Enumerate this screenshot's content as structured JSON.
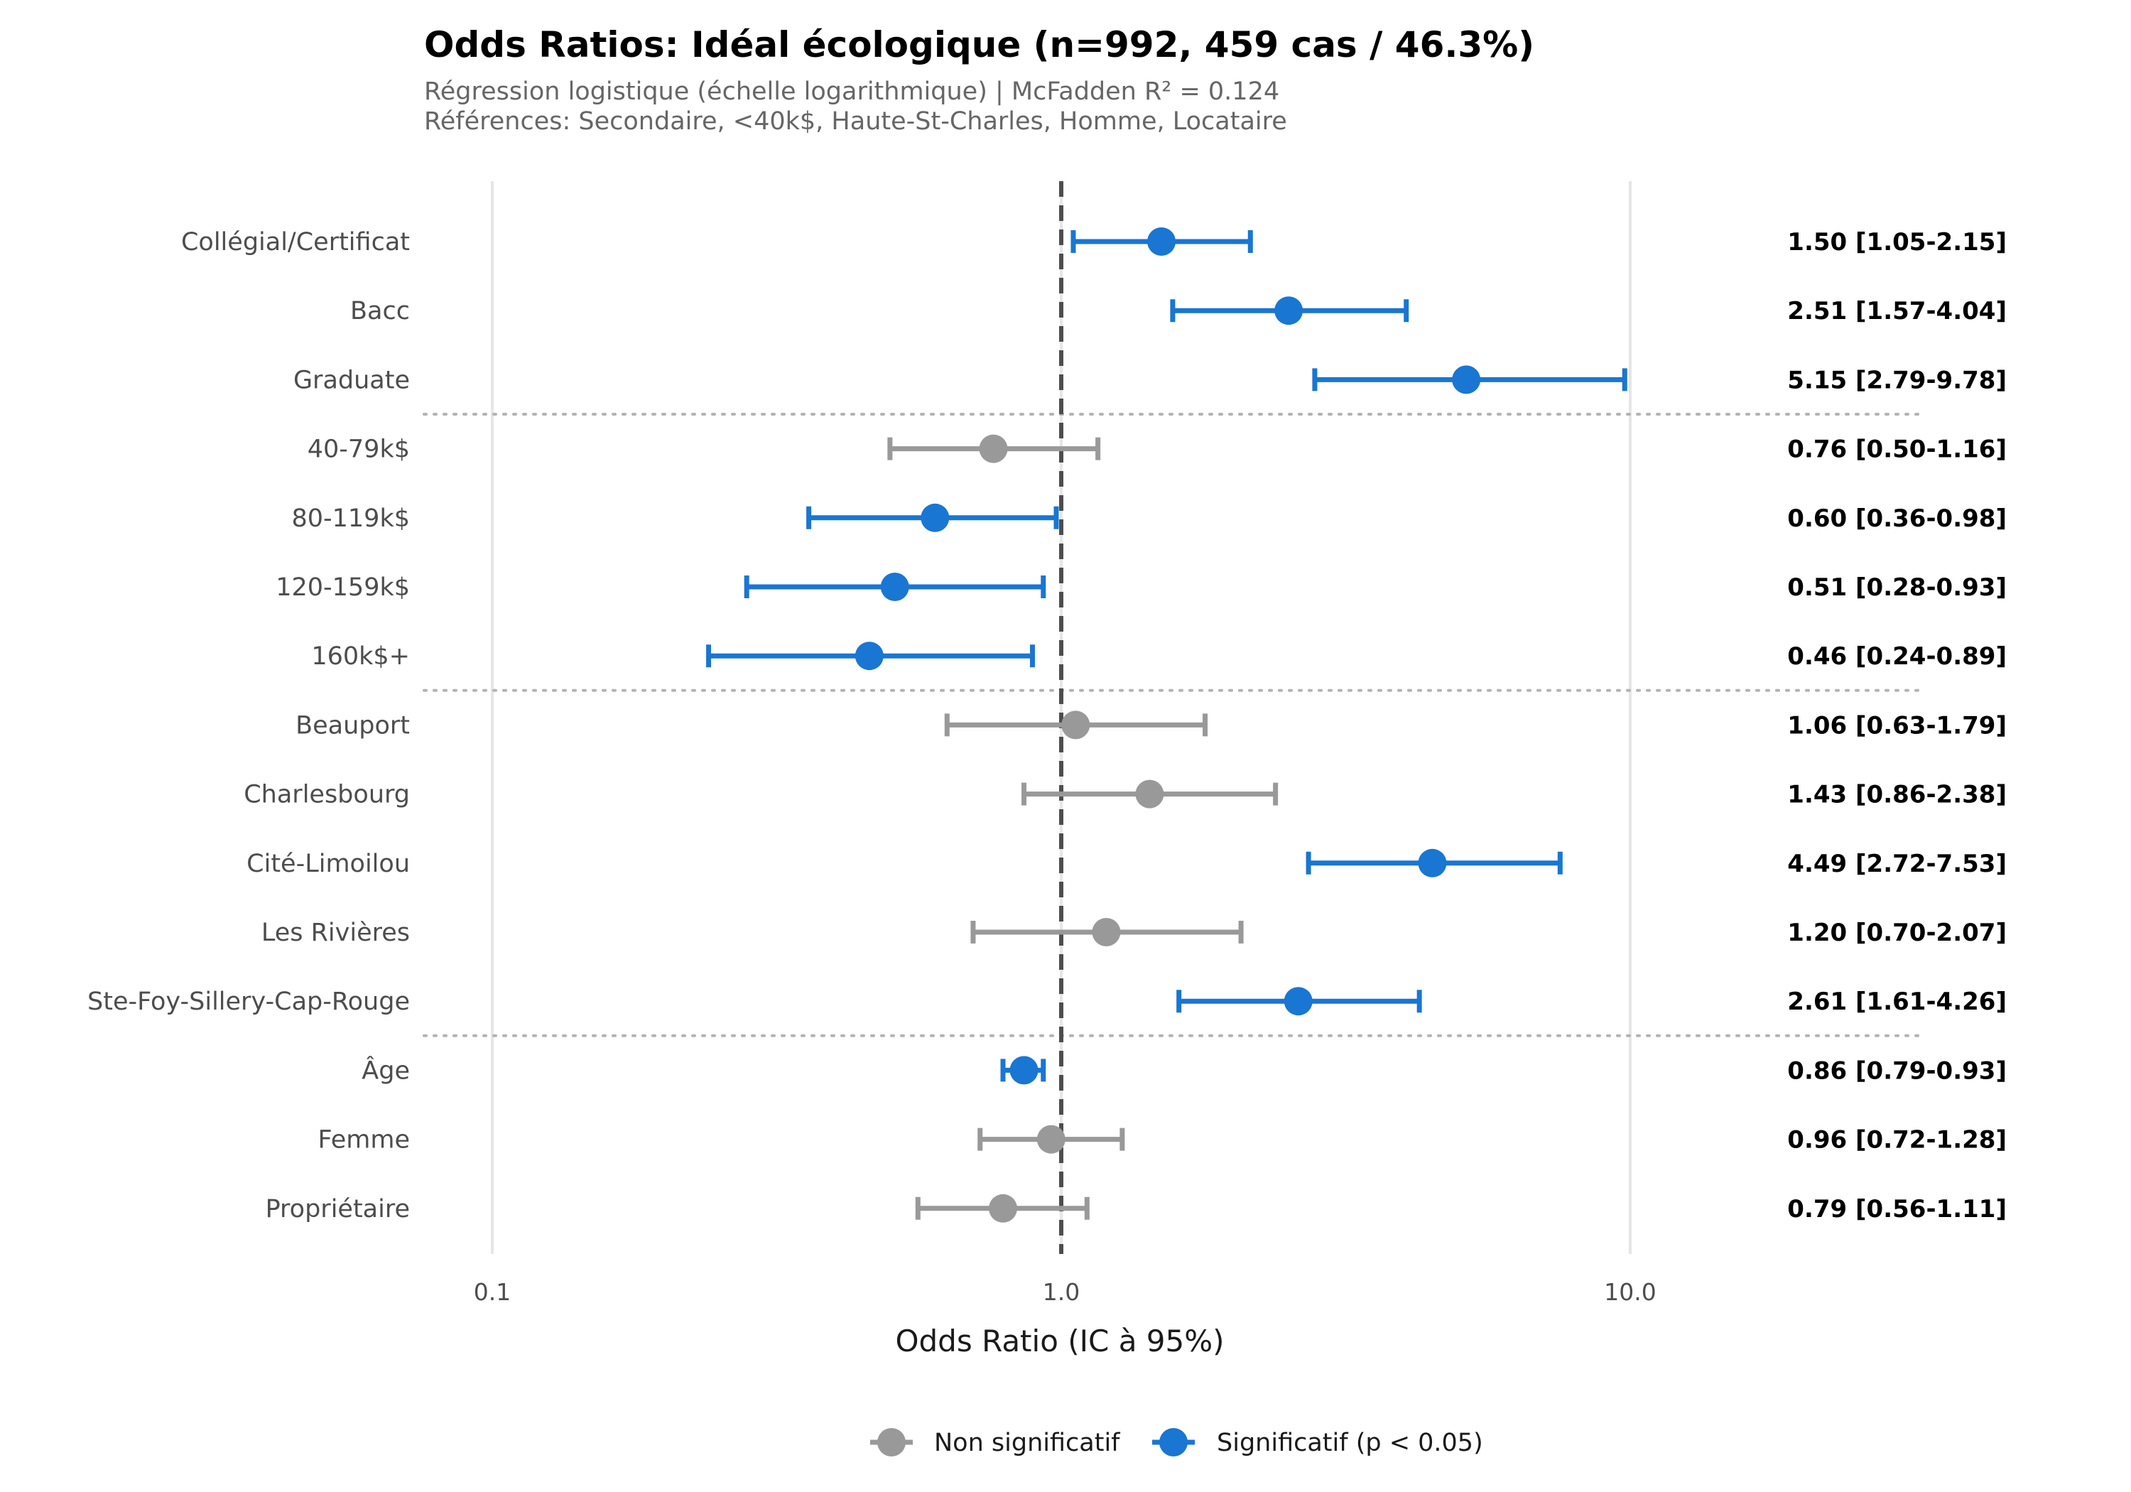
{
  "chart_data": {
    "type": "scatter",
    "subtype": "forest-plot",
    "title": "Odds Ratios: Idéal écologique (n=992, 459 cas / 46.3%)",
    "subtitle": [
      "Régression logistique (échelle logarithmique) | McFadden R² = 0.124",
      "Références: Secondaire, <40k$, Haute-St-Charles, Homme, Locataire"
    ],
    "xlabel": "Odds Ratio (IC à 95%)",
    "x_scale": "log",
    "xlim": [
      0.07,
      35
    ],
    "x_ticks": [
      {
        "value": 0.1,
        "label": "0.1"
      },
      {
        "value": 1.0,
        "label": "1.0"
      },
      {
        "value": 10.0,
        "label": "10.0"
      }
    ],
    "reference_line": 1.0,
    "grid": "vertical",
    "legend_position": "bottom",
    "groups": [
      {
        "name": "education",
        "rows": [
          0,
          1,
          2
        ]
      },
      {
        "name": "income",
        "rows": [
          3,
          4,
          5,
          6
        ]
      },
      {
        "name": "district",
        "rows": [
          7,
          8,
          9,
          10,
          11
        ]
      },
      {
        "name": "other",
        "rows": [
          12,
          13,
          14
        ]
      }
    ],
    "rows": [
      {
        "label": "Collégial/Certificat",
        "or": 1.5,
        "lo": 1.05,
        "hi": 2.15,
        "significant": true,
        "annotation": "1.50 [1.05-2.15]"
      },
      {
        "label": "Bacc",
        "or": 2.51,
        "lo": 1.57,
        "hi": 4.04,
        "significant": true,
        "annotation": "2.51 [1.57-4.04]"
      },
      {
        "label": "Graduate",
        "or": 5.15,
        "lo": 2.79,
        "hi": 9.78,
        "significant": true,
        "annotation": "5.15 [2.79-9.78]"
      },
      {
        "label": "40-79k$",
        "or": 0.76,
        "lo": 0.5,
        "hi": 1.16,
        "significant": false,
        "annotation": "0.76 [0.50-1.16]"
      },
      {
        "label": "80-119k$",
        "or": 0.6,
        "lo": 0.36,
        "hi": 0.98,
        "significant": true,
        "annotation": "0.60 [0.36-0.98]"
      },
      {
        "label": "120-159k$",
        "or": 0.51,
        "lo": 0.28,
        "hi": 0.93,
        "significant": true,
        "annotation": "0.51 [0.28-0.93]"
      },
      {
        "label": "160k$+",
        "or": 0.46,
        "lo": 0.24,
        "hi": 0.89,
        "significant": true,
        "annotation": "0.46 [0.24-0.89]"
      },
      {
        "label": "Beauport",
        "or": 1.06,
        "lo": 0.63,
        "hi": 1.79,
        "significant": false,
        "annotation": "1.06 [0.63-1.79]"
      },
      {
        "label": "Charlesbourg",
        "or": 1.43,
        "lo": 0.86,
        "hi": 2.38,
        "significant": false,
        "annotation": "1.43 [0.86-2.38]"
      },
      {
        "label": "Cité-Limoilou",
        "or": 4.49,
        "lo": 2.72,
        "hi": 7.53,
        "significant": true,
        "annotation": "4.49 [2.72-7.53]"
      },
      {
        "label": "Les Rivières",
        "or": 1.2,
        "lo": 0.7,
        "hi": 2.07,
        "significant": false,
        "annotation": "1.20 [0.70-2.07]"
      },
      {
        "label": "Ste-Foy-Sillery-Cap-Rouge",
        "or": 2.61,
        "lo": 1.61,
        "hi": 4.26,
        "significant": true,
        "annotation": "2.61 [1.61-4.26]"
      },
      {
        "label": "Âge",
        "or": 0.86,
        "lo": 0.79,
        "hi": 0.93,
        "significant": true,
        "annotation": "0.86 [0.79-0.93]"
      },
      {
        "label": "Femme",
        "or": 0.96,
        "lo": 0.72,
        "hi": 1.28,
        "significant": false,
        "annotation": "0.96 [0.72-1.28]"
      },
      {
        "label": "Propriétaire",
        "or": 0.79,
        "lo": 0.56,
        "hi": 1.11,
        "significant": false,
        "annotation": "0.79 [0.56-1.11]"
      }
    ],
    "legend": [
      {
        "key": "nonsig",
        "label": "Non significatif",
        "color": "#999999"
      },
      {
        "key": "sig",
        "label": "Significatif (p < 0.05)",
        "color": "#1976D2"
      }
    ],
    "colors": {
      "significant": "#1976D2",
      "non_significant": "#999999",
      "reference_line": "#4d4d4d",
      "grid": "#e6e6e6",
      "separator": "#b3b3b3"
    }
  }
}
